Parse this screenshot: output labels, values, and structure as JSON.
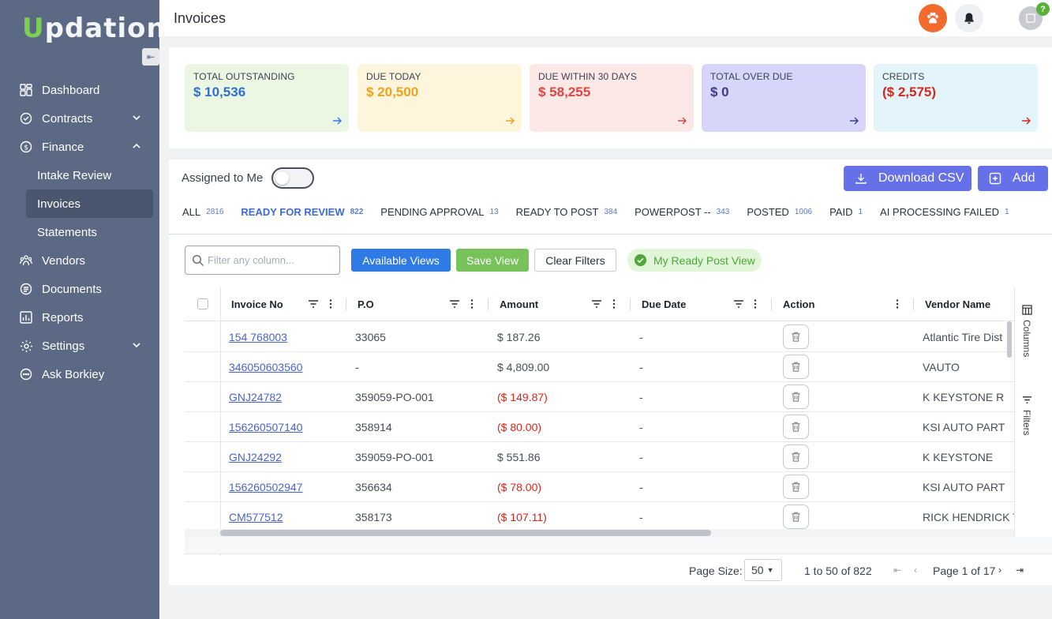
{
  "app": {
    "logo_u": "U",
    "logo_rest": "pdation"
  },
  "sidebar": {
    "items": [
      {
        "label": "Dashboard"
      },
      {
        "label": "Contracts"
      },
      {
        "label": "Finance"
      },
      {
        "label": "Vendors"
      },
      {
        "label": "Documents"
      },
      {
        "label": "Reports"
      },
      {
        "label": "Settings"
      },
      {
        "label": "Ask Borkiey"
      }
    ],
    "finance_sub": [
      {
        "label": "Intake Review"
      },
      {
        "label": "Invoices"
      },
      {
        "label": "Statements"
      }
    ]
  },
  "header": {
    "title": "Invoices",
    "help_badge": "?"
  },
  "cards": [
    {
      "label": "TOTAL OUTSTANDING",
      "value": "$ 10,536",
      "bg": "#ebf7e3",
      "color": "#2f6fd0",
      "arrow": "#2f7be6"
    },
    {
      "label": "DUE TODAY",
      "value": "$ 20,500",
      "bg": "#fdf6dc",
      "color": "#f0a21d",
      "arrow": "#f0a21d"
    },
    {
      "label": "DUE WITHIN 30 DAYS",
      "value": "$ 58,255",
      "bg": "#fde8e8",
      "color": "#e0453f",
      "arrow": "#e0453f"
    },
    {
      "label": "TOTAL OVER DUE",
      "value": "$ 0",
      "bg": "#d7d5fa",
      "color": "#3e3a8a",
      "arrow": "#3e3a8a"
    },
    {
      "label": "CREDITS",
      "value": "($ 2,575)",
      "bg": "#e3f4fb",
      "color": "#d8261b",
      "arrow": "#d8261b"
    }
  ],
  "toolbar": {
    "assigned_label": "Assigned to Me",
    "download_label": "Download CSV",
    "add_label": "Add",
    "filter_placeholder": "Filter any column...",
    "views_label": "Available Views",
    "save_label": "Save View",
    "clear_label": "Clear Filters",
    "myview_label": "My Ready Post View"
  },
  "tabs": [
    {
      "label": "ALL",
      "count": "2816"
    },
    {
      "label": "READY FOR REVIEW",
      "count": "822"
    },
    {
      "label": "PENDING APPROVAL",
      "count": "13"
    },
    {
      "label": "READY TO POST",
      "count": "384"
    },
    {
      "label": "POWERPOST --",
      "count": "343"
    },
    {
      "label": "POSTED",
      "count": "1006"
    },
    {
      "label": "PAID",
      "count": "1"
    },
    {
      "label": "AI PROCESSING FAILED",
      "count": "1"
    }
  ],
  "columns": [
    "Invoice No",
    "P.O",
    "Amount",
    "Due Date",
    "Action",
    "Vendor Name"
  ],
  "rows": [
    {
      "invoice": "154 768003",
      "po": "33065",
      "amount": "$ 187.26",
      "neg": false,
      "due": "-",
      "vendor": "Atlantic Tire Dist"
    },
    {
      "invoice": "346050603560",
      "po": "-",
      "amount": "$ 4,809.00",
      "neg": false,
      "due": "-",
      "vendor": "VAUTO"
    },
    {
      "invoice": "GNJ24782",
      "po": "359059-PO-001",
      "amount": "($ 149.87)",
      "neg": true,
      "due": "-",
      "vendor": "K KEYSTONE R"
    },
    {
      "invoice": "156260507140",
      "po": "358914",
      "amount": "($ 80.00)",
      "neg": true,
      "due": "-",
      "vendor": "KSI AUTO PART"
    },
    {
      "invoice": "GNJ24292",
      "po": "359059-PO-001",
      "amount": "$ 551.86",
      "neg": false,
      "due": "-",
      "vendor": "K KEYSTONE"
    },
    {
      "invoice": "156260502947",
      "po": "356634",
      "amount": "($ 78.00)",
      "neg": true,
      "due": "-",
      "vendor": "KSI AUTO PART"
    },
    {
      "invoice": "CM577512",
      "po": "358173",
      "amount": "($ 107.11)",
      "neg": true,
      "due": "-",
      "vendor": "RICK HENDRICK T"
    }
  ],
  "side_tools": {
    "columns_label": "Columns",
    "filters_label": "Filters"
  },
  "pager": {
    "size_label": "Page Size:",
    "size_value": "50",
    "range": "1 to 50 of 822",
    "page_text": "Page 1 of 17"
  }
}
